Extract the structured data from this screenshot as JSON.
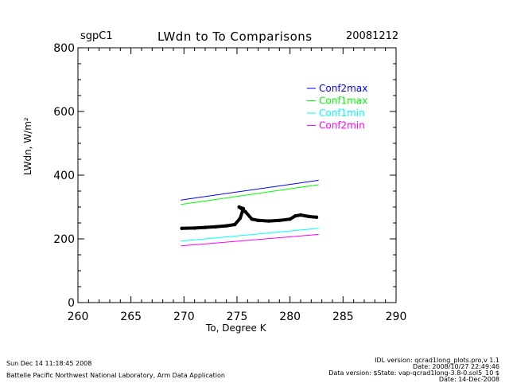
{
  "header": {
    "site": "sgpC1",
    "title": "LWdn to To Comparisons",
    "date": "20081212"
  },
  "footer": {
    "left_line1": "Sun Dec 14 11:18:45 2008",
    "left_line2": "Battelle Pacific Northwest National Laboratory, Arm Data Application",
    "right_line1": "IDL version: qcrad1long_plots.pro,v 1.1",
    "right_line2": "Date: 2008/10/27 22:49:46",
    "right_line3": "Data version: $State: vap-qcrad1long-3.8-0.sol5_10 $",
    "right_line4": "Date: 14-Dec-2008"
  },
  "chart_data": {
    "type": "line",
    "title": "LWdn to To Comparisons",
    "xlabel": "To, Degree K",
    "ylabel": "LWdn, W/m²",
    "xlim": [
      260,
      290
    ],
    "ylim": [
      0,
      800
    ],
    "x_ticks": [
      260,
      265,
      270,
      275,
      280,
      285,
      290
    ],
    "y_ticks": [
      0,
      200,
      400,
      600,
      800
    ],
    "legend_position": "top-right",
    "series": [
      {
        "name": "Conf2max",
        "color": "#0000ff",
        "x": [
          269.7,
          282.7
        ],
        "y": [
          322,
          384
        ]
      },
      {
        "name": "Conf1max",
        "color": "#00ff00",
        "x": [
          269.7,
          282.7
        ],
        "y": [
          308,
          370
        ]
      },
      {
        "name": "Conf1min",
        "color": "#00ffff",
        "x": [
          269.7,
          282.7
        ],
        "y": [
          193,
          233
        ]
      },
      {
        "name": "Conf2min",
        "color": "#ff00ff",
        "x": [
          269.7,
          282.7
        ],
        "y": [
          178,
          214
        ]
      }
    ],
    "observations": {
      "color": "#000000",
      "x": [
        269.8,
        271.0,
        272.0,
        273.0,
        274.0,
        274.8,
        275.3,
        275.6,
        275.2,
        275.8,
        276.4,
        277.0,
        278.0,
        279.0,
        280.0,
        280.5,
        281.0,
        281.8,
        282.5
      ],
      "y": [
        233,
        234,
        236,
        238,
        241,
        245,
        265,
        295,
        300,
        285,
        262,
        258,
        256,
        258,
        262,
        272,
        275,
        270,
        268
      ]
    }
  }
}
